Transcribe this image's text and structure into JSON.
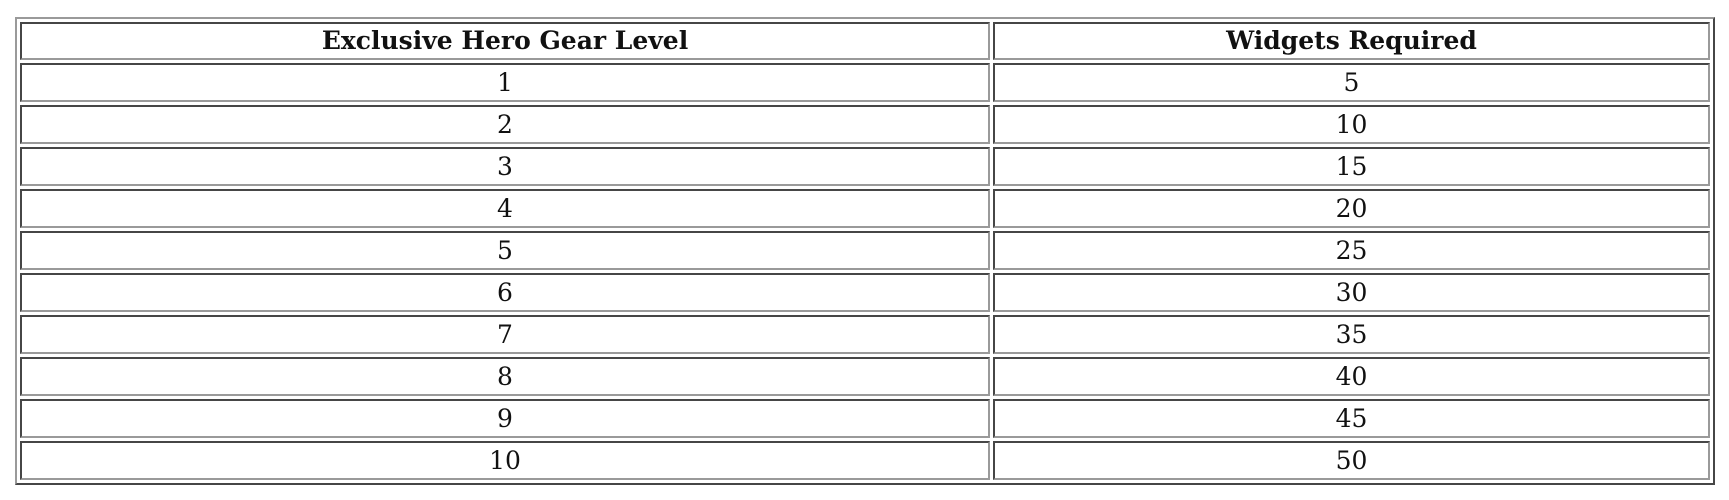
{
  "table": {
    "headers": [
      "Exclusive Hero Gear Level",
      "Widgets Required"
    ],
    "rows": [
      [
        "1",
        "5"
      ],
      [
        "2",
        "10"
      ],
      [
        "3",
        "15"
      ],
      [
        "4",
        "20"
      ],
      [
        "5",
        "25"
      ],
      [
        "6",
        "30"
      ],
      [
        "7",
        "35"
      ],
      [
        "8",
        "40"
      ],
      [
        "9",
        "45"
      ],
      [
        "10",
        "50"
      ]
    ]
  }
}
